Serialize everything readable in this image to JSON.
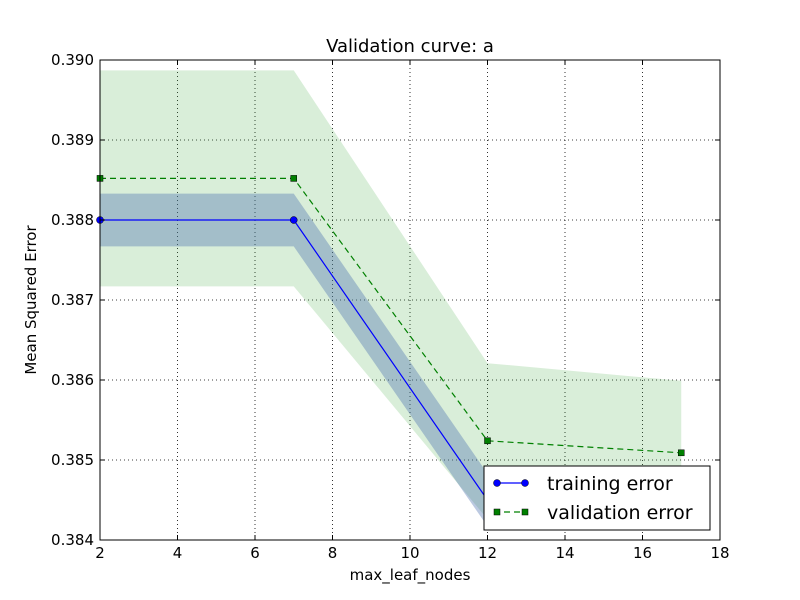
{
  "chart_data": {
    "type": "line",
    "title": "Validation curve: a",
    "xlabel": "max_leaf_nodes",
    "ylabel": "Mean Squared Error",
    "xlim": [
      2,
      18
    ],
    "ylim": [
      0.384,
      0.39
    ],
    "xticks": [
      "2",
      "4",
      "6",
      "8",
      "10",
      "12",
      "14",
      "16",
      "18"
    ],
    "yticks": [
      "0.384",
      "0.385",
      "0.386",
      "0.387",
      "0.388",
      "0.389",
      "0.390"
    ],
    "grid": true,
    "legend_position": "lower-right",
    "x": [
      2,
      7,
      12,
      17
    ],
    "series": [
      {
        "name": "training error",
        "values": [
          0.388,
          0.388,
          0.3845,
          0.3845
        ],
        "band_lower": [
          0.38767,
          0.38767,
          0.38417,
          0.38417
        ],
        "band_upper": [
          0.38833,
          0.38833,
          0.38483,
          0.38483
        ],
        "color": "#0000ff",
        "band_color": "#4c72b0",
        "marker": "circle",
        "linestyle": "solid"
      },
      {
        "name": "validation error",
        "values": [
          0.38852,
          0.38852,
          0.38524,
          0.38509
        ],
        "band_lower": [
          0.38717,
          0.38717,
          0.38426,
          0.38412
        ],
        "band_upper": [
          0.38987,
          0.38987,
          0.38621,
          0.38599
        ],
        "color": "#008000",
        "band_color": "#2ca02c",
        "marker": "square",
        "linestyle": "dashed"
      }
    ]
  }
}
